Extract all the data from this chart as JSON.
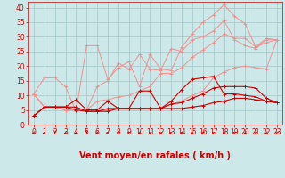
{
  "bg_color": "#cce8e8",
  "grid_color": "#aacccc",
  "xlabel": "Vent moyen/en rafales ( km/h )",
  "xlabel_color": "#cc0000",
  "xlabel_fontsize": 7,
  "tick_color": "#cc0000",
  "tick_fontsize": 5.5,
  "ylim": [
    0,
    42
  ],
  "yticks": [
    0,
    5,
    10,
    15,
    20,
    25,
    30,
    35,
    40
  ],
  "xlim": [
    -0.5,
    23.5
  ],
  "xticks": [
    0,
    1,
    2,
    3,
    4,
    5,
    6,
    7,
    8,
    9,
    10,
    11,
    12,
    13,
    14,
    15,
    16,
    17,
    18,
    19,
    20,
    21,
    22,
    23
  ],
  "light_lines": [
    [
      10.5,
      16.0,
      16.0,
      13.0,
      4.5,
      27.0,
      27.0,
      15.5,
      19.5,
      21.5,
      13.0,
      24.0,
      19.0,
      18.5,
      26.5,
      31.0,
      35.0,
      37.5,
      41.0,
      37.0,
      34.5,
      26.5,
      29.5,
      29.0
    ],
    [
      10.5,
      6.0,
      6.0,
      5.0,
      5.0,
      5.0,
      13.0,
      15.0,
      21.0,
      19.0,
      24.0,
      19.0,
      18.5,
      26.0,
      25.0,
      29.0,
      30.0,
      32.0,
      35.5,
      29.0,
      27.0,
      26.0,
      29.0,
      29.0
    ],
    [
      10.5,
      6.0,
      6.0,
      5.0,
      5.0,
      5.0,
      8.0,
      8.5,
      9.5,
      10.0,
      11.5,
      13.0,
      17.5,
      17.5,
      19.5,
      23.0,
      25.5,
      28.0,
      31.0,
      29.5,
      29.5,
      26.5,
      28.0,
      29.0
    ],
    [
      10.5,
      6.0,
      6.0,
      5.0,
      5.0,
      5.0,
      4.5,
      5.0,
      5.5,
      5.5,
      5.5,
      5.5,
      5.5,
      7.0,
      8.0,
      10.0,
      11.5,
      16.0,
      18.0,
      19.5,
      20.0,
      19.5,
      19.0,
      29.0
    ]
  ],
  "light_color": "#f09090",
  "dark_lines": [
    [
      3.0,
      6.0,
      6.0,
      6.0,
      8.5,
      5.0,
      5.0,
      8.0,
      5.5,
      5.5,
      11.5,
      11.5,
      5.5,
      8.0,
      12.0,
      15.5,
      16.0,
      16.5,
      10.5,
      10.5,
      10.0,
      9.5,
      8.0,
      7.5
    ],
    [
      3.0,
      6.0,
      6.0,
      6.0,
      6.0,
      4.5,
      4.5,
      5.5,
      5.5,
      5.5,
      5.5,
      5.5,
      5.5,
      7.0,
      7.5,
      9.0,
      10.5,
      12.5,
      13.0,
      13.0,
      13.0,
      12.5,
      9.0,
      7.5
    ],
    [
      3.0,
      6.0,
      6.0,
      6.0,
      5.0,
      4.5,
      4.5,
      4.5,
      5.5,
      5.5,
      5.5,
      5.5,
      5.5,
      5.5,
      5.5,
      6.0,
      6.5,
      7.5,
      8.0,
      9.0,
      9.0,
      8.5,
      8.0,
      7.5
    ]
  ],
  "dark_color": "#cc0000",
  "arrow_angles": [
    225,
    210,
    270,
    225,
    225,
    270,
    225,
    180,
    135,
    135,
    225,
    135,
    135,
    180,
    180,
    225,
    135,
    135,
    225,
    135,
    225,
    135,
    225,
    135
  ]
}
